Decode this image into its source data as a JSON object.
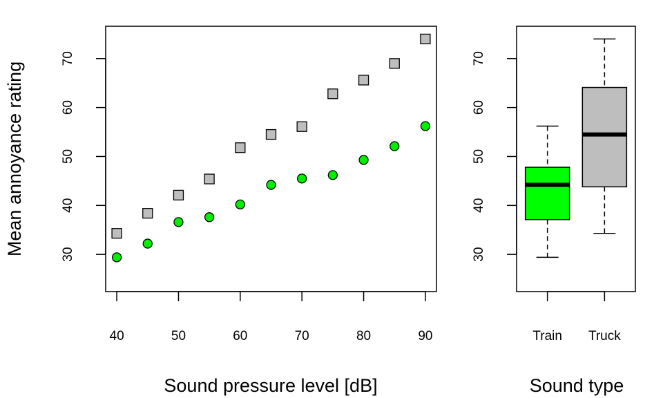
{
  "chart_data": [
    {
      "type": "scatter",
      "xlabel": "Sound pressure level [dB]",
      "ylabel": "Mean annoyance rating",
      "xlim": [
        38.2,
        91.8
      ],
      "ylim": [
        22.4,
        76.6
      ],
      "xticks": [
        40,
        50,
        60,
        70,
        80,
        90
      ],
      "yticks": [
        30,
        40,
        50,
        60,
        70
      ],
      "series": [
        {
          "marker": "square",
          "color": "#bebebe",
          "x": [
            40,
            45,
            50,
            55,
            60,
            65,
            70,
            75,
            80,
            85,
            90
          ],
          "y": [
            34.3,
            38.4,
            42.1,
            45.4,
            51.8,
            54.5,
            56.1,
            62.8,
            65.6,
            69.0,
            74.0
          ]
        },
        {
          "marker": "circle",
          "color": "#00ee00",
          "x": [
            40,
            45,
            50,
            55,
            60,
            65,
            70,
            75,
            80,
            85,
            90
          ],
          "y": [
            29.4,
            32.2,
            36.6,
            37.6,
            40.2,
            44.2,
            45.5,
            46.2,
            49.3,
            52.1,
            56.2
          ]
        }
      ]
    },
    {
      "type": "box",
      "xlabel": "Sound type",
      "ylabel": "",
      "ylim": [
        22.4,
        76.6
      ],
      "yticks": [
        30,
        40,
        50,
        60,
        70
      ],
      "categories": [
        "Train",
        "Truck"
      ],
      "boxes": [
        {
          "color": "#00ff00",
          "min": 29.4,
          "q1": 37.1,
          "median": 44.2,
          "q3": 47.8,
          "max": 56.2
        },
        {
          "color": "#bebebe",
          "min": 34.3,
          "q1": 43.8,
          "median": 54.5,
          "q3": 64.1,
          "max": 74.0
        }
      ]
    }
  ]
}
